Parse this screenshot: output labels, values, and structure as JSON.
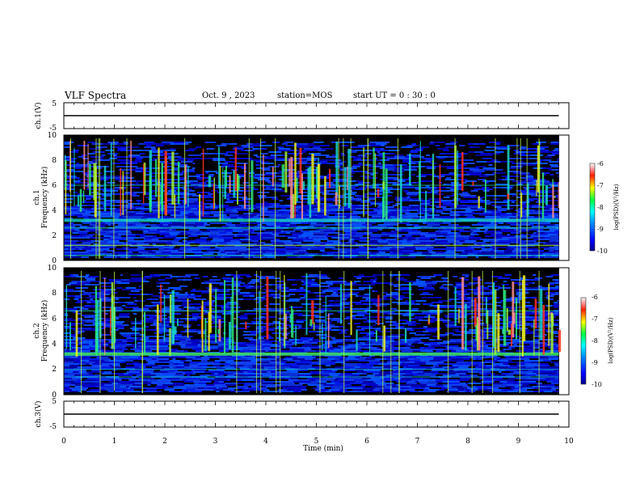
{
  "header": {
    "title": "VLF Spectra",
    "date": "Oct. 9 , 2023",
    "station": "station=MOS",
    "start": "start  UT =  0 : 30 : 0"
  },
  "chart_data": [
    {
      "type": "line",
      "panel": "ch1-waveform",
      "ylabel": "ch.1(V)",
      "ylim": [
        -5,
        5
      ],
      "yticks": [
        "5",
        "-5"
      ],
      "series": [
        {
          "name": "ch.1",
          "x": [
            0,
            9.8
          ],
          "y": [
            0,
            0
          ]
        }
      ]
    },
    {
      "type": "heatmap",
      "panel": "ch1-spectrogram",
      "ylabel": "ch.1\nFrequency (kHz)",
      "ylim": [
        0,
        10
      ],
      "yticks": [
        "0",
        "2",
        "4",
        "6",
        "8",
        "10"
      ],
      "xlim": [
        0,
        10
      ],
      "data_end_min": 9.8,
      "colorbar": {
        "label": "log(PSD)(V²/Hz)",
        "range": [
          -10,
          -6
        ],
        "ticks": [
          "-6",
          "-7",
          "-8",
          "-9",
          "-10"
        ]
      }
    },
    {
      "type": "heatmap",
      "panel": "ch2-spectrogram",
      "ylabel": "ch.2\nFrequency (kHz)",
      "ylim": [
        0,
        10
      ],
      "yticks": [
        "0",
        "2",
        "4",
        "6",
        "8",
        "10"
      ],
      "xlim": [
        0,
        10
      ],
      "data_end_min": 9.8,
      "colorbar": {
        "label": "log(PSD)(V²/Hz)",
        "range": [
          -10,
          -6
        ],
        "ticks": [
          "-6",
          "-7",
          "-8",
          "-9",
          "-10"
        ]
      }
    },
    {
      "type": "line",
      "panel": "ch3-waveform",
      "ylabel": "ch.3(V)",
      "ylim": [
        -5,
        5
      ],
      "yticks": [
        "5",
        "-5"
      ],
      "series": [
        {
          "name": "ch.3",
          "x": [
            0,
            9.8
          ],
          "y": [
            0,
            0
          ]
        }
      ]
    }
  ],
  "xaxis": {
    "label": "Time (min)",
    "range": [
      0,
      10
    ],
    "ticks": [
      "0",
      "1",
      "2",
      "3",
      "4",
      "5",
      "6",
      "7",
      "8",
      "9",
      "10"
    ]
  },
  "colors": {
    "background": "#000000",
    "base": "#0a2fd8",
    "band": "#17d6c8",
    "line": "#9ff03a"
  }
}
